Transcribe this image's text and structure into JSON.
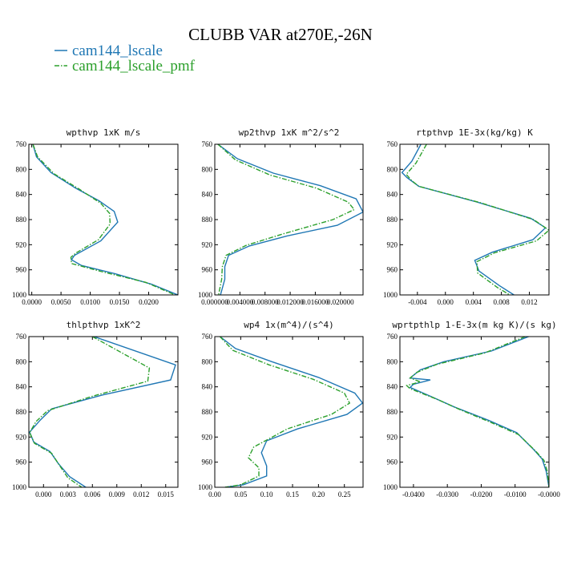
{
  "title": "CLUBB VAR at270E,-26N",
  "legend": [
    {
      "name": "cam144_lscale",
      "color": "#1f77b4",
      "dash": "solid"
    },
    {
      "name": "cam144_lscale_pmf",
      "color": "#2ca02c",
      "dash": "dash-dot"
    }
  ],
  "chart_data": [
    {
      "type": "line",
      "title": "wpthvp  1xK m/s",
      "y_reversed": true,
      "ylim": [
        760,
        1000
      ],
      "yticks": [
        "760",
        "800",
        "840",
        "880",
        "920",
        "960",
        "1000"
      ],
      "xlim": [
        -0.0005,
        0.025
      ],
      "xticks": [
        {
          "v": 0.0,
          "t": "0.0000"
        },
        {
          "v": 0.005,
          "t": "0.0050"
        },
        {
          "v": 0.01,
          "t": "0.0100"
        },
        {
          "v": 0.015,
          "t": "0.0150"
        },
        {
          "v": 0.02,
          "t": "0.0200"
        }
      ],
      "series": [
        {
          "name": "cam144_lscale",
          "points": [
            [
              0.0002,
              760
            ],
            [
              0.0008,
              780
            ],
            [
              0.0033,
              805
            ],
            [
              0.0075,
              830
            ],
            [
              0.0115,
              850
            ],
            [
              0.0141,
              867
            ],
            [
              0.0147,
              884
            ],
            [
              0.0118,
              914
            ],
            [
              0.0073,
              937
            ],
            [
              0.0068,
              944
            ],
            [
              0.0085,
              953
            ],
            [
              0.0142,
              966
            ],
            [
              0.0205,
              983
            ],
            [
              0.025,
              1000
            ]
          ]
        },
        {
          "name": "cam144_lscale_pmf",
          "points": [
            [
              0.0002,
              760
            ],
            [
              0.001,
              780
            ],
            [
              0.0038,
              807
            ],
            [
              0.0082,
              832
            ],
            [
              0.0118,
              854
            ],
            [
              0.0133,
              870
            ],
            [
              0.0134,
              887
            ],
            [
              0.0114,
              912
            ],
            [
              0.0076,
              933
            ],
            [
              0.0067,
              940
            ],
            [
              0.0068,
              950
            ],
            [
              0.012,
              963
            ],
            [
              0.0195,
              980
            ],
            [
              0.0245,
              1000
            ]
          ]
        }
      ]
    },
    {
      "type": "line",
      "title": "wp2thvp  1xK m^2/s^2",
      "y_reversed": true,
      "ylim": [
        760,
        1000
      ],
      "yticks": [
        "760",
        "800",
        "840",
        "880",
        "920",
        "960",
        "1000"
      ],
      "xlim": [
        0.0,
        0.0236
      ],
      "xticks": [
        {
          "v": 0.0,
          "t": "0.000000"
        },
        {
          "v": 0.004,
          "t": "0.004000"
        },
        {
          "v": 0.008,
          "t": "0.008000"
        },
        {
          "v": 0.012,
          "t": "0.012000"
        },
        {
          "v": 0.016,
          "t": "0.016000"
        },
        {
          "v": 0.02,
          "t": "0.020000"
        }
      ],
      "series": [
        {
          "name": "cam144_lscale",
          "points": [
            [
              0.0005,
              760
            ],
            [
              0.0036,
              783
            ],
            [
              0.0093,
              806
            ],
            [
              0.0168,
              826
            ],
            [
              0.0225,
              847
            ],
            [
              0.0236,
              868
            ],
            [
              0.0195,
              889
            ],
            [
              0.0115,
              906
            ],
            [
              0.0055,
              922
            ],
            [
              0.0022,
              937
            ],
            [
              0.0016,
              955
            ],
            [
              0.0016,
              975
            ],
            [
              0.0009,
              1000
            ]
          ]
        },
        {
          "name": "cam144_lscale_pmf",
          "points": [
            [
              0.0005,
              760
            ],
            [
              0.0033,
              785
            ],
            [
              0.0088,
              809
            ],
            [
              0.0162,
              830
            ],
            [
              0.0212,
              852
            ],
            [
              0.0222,
              864
            ],
            [
              0.0188,
              880
            ],
            [
              0.0108,
              903
            ],
            [
              0.005,
              921
            ],
            [
              0.0018,
              937
            ],
            [
              0.0012,
              955
            ],
            [
              0.0011,
              975
            ],
            [
              0.0006,
              1000
            ]
          ]
        }
      ]
    },
    {
      "type": "line",
      "title": "rtpthvp  1E-3x(kg/kg) K",
      "y_reversed": true,
      "ylim": [
        760,
        1000
      ],
      "yticks": [
        "760",
        "800",
        "840",
        "880",
        "920",
        "960",
        "1000"
      ],
      "xlim": [
        -0.0065,
        0.0148
      ],
      "xticks": [
        {
          "v": -0.004,
          "t": "-0.004"
        },
        {
          "v": 0.0,
          "t": "0.000"
        },
        {
          "v": 0.004,
          "t": "0.004"
        },
        {
          "v": 0.008,
          "t": "0.008"
        },
        {
          "v": 0.012,
          "t": "0.012"
        }
      ],
      "series": [
        {
          "name": "cam144_lscale",
          "points": [
            [
              -0.0035,
              760
            ],
            [
              -0.0048,
              787
            ],
            [
              -0.0062,
              805
            ],
            [
              -0.0055,
              813
            ],
            [
              -0.0038,
              827
            ],
            [
              0.0045,
              852
            ],
            [
              0.0122,
              878
            ],
            [
              0.0143,
              893
            ],
            [
              0.0125,
              912
            ],
            [
              0.0067,
              932
            ],
            [
              0.0042,
              945
            ],
            [
              0.0048,
              962
            ],
            [
              0.0077,
              985
            ],
            [
              0.0098,
              1000
            ]
          ]
        },
        {
          "name": "cam144_lscale_pmf",
          "points": [
            [
              -0.0027,
              760
            ],
            [
              -0.0042,
              790
            ],
            [
              -0.0056,
              808
            ],
            [
              -0.0048,
              818
            ],
            [
              -0.0038,
              827
            ],
            [
              0.005,
              853
            ],
            [
              0.0126,
              880
            ],
            [
              0.0148,
              897
            ],
            [
              0.013,
              914
            ],
            [
              0.007,
              933
            ],
            [
              0.0045,
              947
            ],
            [
              0.0046,
              965
            ],
            [
              0.0074,
              988
            ],
            [
              0.0092,
              1000
            ]
          ]
        }
      ]
    },
    {
      "type": "line",
      "title": "thlpthvp  1xK^2",
      "y_reversed": true,
      "ylim": [
        760,
        1000
      ],
      "yticks": [
        "760",
        "800",
        "840",
        "880",
        "920",
        "960",
        "1000"
      ],
      "xlim": [
        -0.0018,
        0.0165
      ],
      "xticks": [
        {
          "v": 0.0,
          "t": "0.000"
        },
        {
          "v": 0.003,
          "t": "0.003"
        },
        {
          "v": 0.006,
          "t": "0.006"
        },
        {
          "v": 0.009,
          "t": "0.009"
        },
        {
          "v": 0.012,
          "t": "0.012"
        },
        {
          "v": 0.015,
          "t": "0.015"
        }
      ],
      "series": [
        {
          "name": "cam144_lscale",
          "points": [
            [
              0.0062,
              760
            ],
            [
              0.0162,
              805
            ],
            [
              0.0156,
              829
            ],
            [
              0.0072,
              853
            ],
            [
              0.001,
              875
            ],
            [
              -0.0004,
              893
            ],
            [
              -0.0017,
              912
            ],
            [
              -0.0012,
              928
            ],
            [
              0.0008,
              943
            ],
            [
              0.0018,
              962
            ],
            [
              0.0032,
              983
            ],
            [
              0.0052,
              1000
            ]
          ]
        },
        {
          "name": "cam144_lscale_pmf",
          "points": [
            [
              0.006,
              760
            ],
            [
              0.013,
              810
            ],
            [
              0.0128,
              831
            ],
            [
              0.006,
              855
            ],
            [
              0.0005,
              878
            ],
            [
              -0.0009,
              895
            ],
            [
              -0.0017,
              913
            ],
            [
              -0.0011,
              930
            ],
            [
              0.001,
              946
            ],
            [
              0.0018,
              962
            ],
            [
              0.003,
              985
            ],
            [
              0.0047,
              1000
            ]
          ]
        }
      ]
    },
    {
      "type": "line",
      "title": "wp4  1x(m^4)/(s^4)",
      "y_reversed": true,
      "ylim": [
        760,
        1000
      ],
      "yticks": [
        "760",
        "800",
        "840",
        "880",
        "920",
        "960",
        "1000"
      ],
      "xlim": [
        0.0,
        0.286
      ],
      "xticks": [
        {
          "v": 0.0,
          "t": "0.00"
        },
        {
          "v": 0.05,
          "t": "0.05"
        },
        {
          "v": 0.1,
          "t": "0.10"
        },
        {
          "v": 0.15,
          "t": "0.15"
        },
        {
          "v": 0.2,
          "t": "0.20"
        },
        {
          "v": 0.25,
          "t": "0.25"
        }
      ],
      "series": [
        {
          "name": "cam144_lscale",
          "points": [
            [
              0.01,
              760
            ],
            [
              0.04,
              779
            ],
            [
              0.11,
              800
            ],
            [
              0.2,
              825
            ],
            [
              0.27,
              850
            ],
            [
              0.285,
              866
            ],
            [
              0.255,
              884
            ],
            [
              0.16,
              907
            ],
            [
              0.1,
              926
            ],
            [
              0.09,
              945
            ],
            [
              0.1,
              966
            ],
            [
              0.1,
              982
            ],
            [
              0.055,
              996
            ],
            [
              0.02,
              1000
            ]
          ]
        },
        {
          "name": "cam144_lscale_pmf",
          "points": [
            [
              0.01,
              760
            ],
            [
              0.035,
              782
            ],
            [
              0.105,
              805
            ],
            [
              0.19,
              828
            ],
            [
              0.25,
              850
            ],
            [
              0.26,
              866
            ],
            [
              0.225,
              884
            ],
            [
              0.14,
              907
            ],
            [
              0.075,
              936
            ],
            [
              0.065,
              953
            ],
            [
              0.085,
              969
            ],
            [
              0.085,
              982
            ],
            [
              0.05,
              996
            ],
            [
              0.02,
              1000
            ]
          ]
        }
      ]
    },
    {
      "type": "line",
      "title": "wprtpthlp  1-E-3x(m kg K)/(s kg)",
      "y_reversed": true,
      "ylim": [
        760,
        1000
      ],
      "yticks": [
        "760",
        "800",
        "840",
        "880",
        "920",
        "960",
        "1000"
      ],
      "xlim": [
        -0.044,
        0.0
      ],
      "xticks": [
        {
          "v": -0.04,
          "t": "-0.0400"
        },
        {
          "v": -0.03,
          "t": "-0.0300"
        },
        {
          "v": -0.02,
          "t": "-0.0200"
        },
        {
          "v": -0.01,
          "t": "-0.0100"
        },
        {
          "v": 0.0,
          "t": "-0.0000"
        }
      ],
      "series": [
        {
          "name": "cam144_lscale",
          "points": [
            [
              -0.006,
              760
            ],
            [
              -0.017,
              783
            ],
            [
              -0.031,
              800
            ],
            [
              -0.038,
              813
            ],
            [
              -0.041,
              826
            ],
            [
              -0.035,
              829
            ],
            [
              -0.04,
              836
            ],
            [
              -0.041,
              841
            ],
            [
              -0.035,
              855
            ],
            [
              -0.028,
              872
            ],
            [
              -0.018,
              893
            ],
            [
              -0.0095,
              913
            ],
            [
              -0.0045,
              940
            ],
            [
              -0.002,
              955
            ],
            [
              -0.0008,
              975
            ],
            [
              0.0,
              1000
            ]
          ]
        },
        {
          "name": "cam144_lscale_pmf",
          "points": [
            [
              -0.007,
              760
            ],
            [
              -0.019,
              786
            ],
            [
              -0.033,
              804
            ],
            [
              -0.039,
              817
            ],
            [
              -0.041,
              826
            ],
            [
              -0.038,
              832
            ],
            [
              -0.042,
              838
            ],
            [
              -0.041,
              843
            ],
            [
              -0.033,
              860
            ],
            [
              -0.026,
              877
            ],
            [
              -0.017,
              897
            ],
            [
              -0.009,
              916
            ],
            [
              -0.004,
              942
            ],
            [
              -0.0015,
              957
            ],
            [
              -0.0005,
              975
            ],
            [
              0.0,
              1000
            ]
          ]
        }
      ]
    }
  ]
}
